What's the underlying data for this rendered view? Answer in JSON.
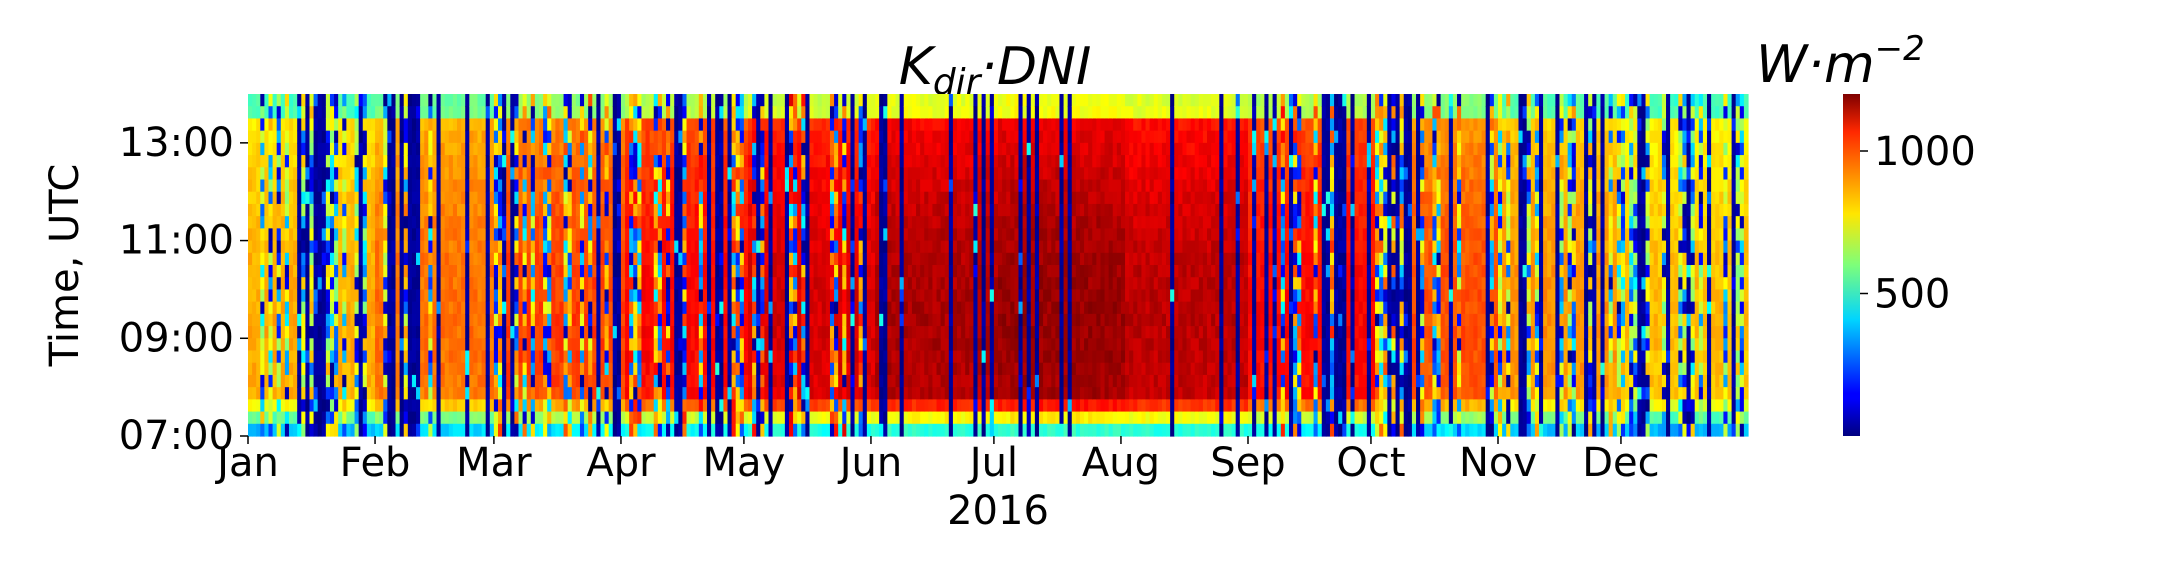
{
  "chart_data": {
    "type": "heatmap",
    "title_main": "K",
    "title_sub": "dir",
    "title_rest": "·DNI",
    "xlabel": "2016",
    "ylabel": "Time, UTC",
    "x_range": [
      "2016-01-01",
      "2016-12-31"
    ],
    "x_ticks": [
      "Jan",
      "Feb",
      "Mar",
      "Apr",
      "May",
      "Jun",
      "Jul",
      "Aug",
      "Sep",
      "Oct",
      "Nov",
      "Dec"
    ],
    "y_range": [
      "07:00",
      "14:00"
    ],
    "y_ticks": [
      "07:00",
      "09:00",
      "11:00",
      "13:00"
    ],
    "colorbar": {
      "label_main": "W·m",
      "label_sup": "−2",
      "colormap": "jet",
      "range": [
        0,
        1200
      ],
      "ticks": [
        500,
        1000
      ]
    },
    "monthly_clear_sky_level": [
      850,
      920,
      980,
      1050,
      1100,
      1150,
      1170,
      1130,
      1050,
      960,
      880,
      830
    ],
    "clear_day_fraction_by_month": [
      0.45,
      0.5,
      0.35,
      0.4,
      0.55,
      0.75,
      0.85,
      0.8,
      0.6,
      0.55,
      0.4,
      0.5
    ]
  }
}
